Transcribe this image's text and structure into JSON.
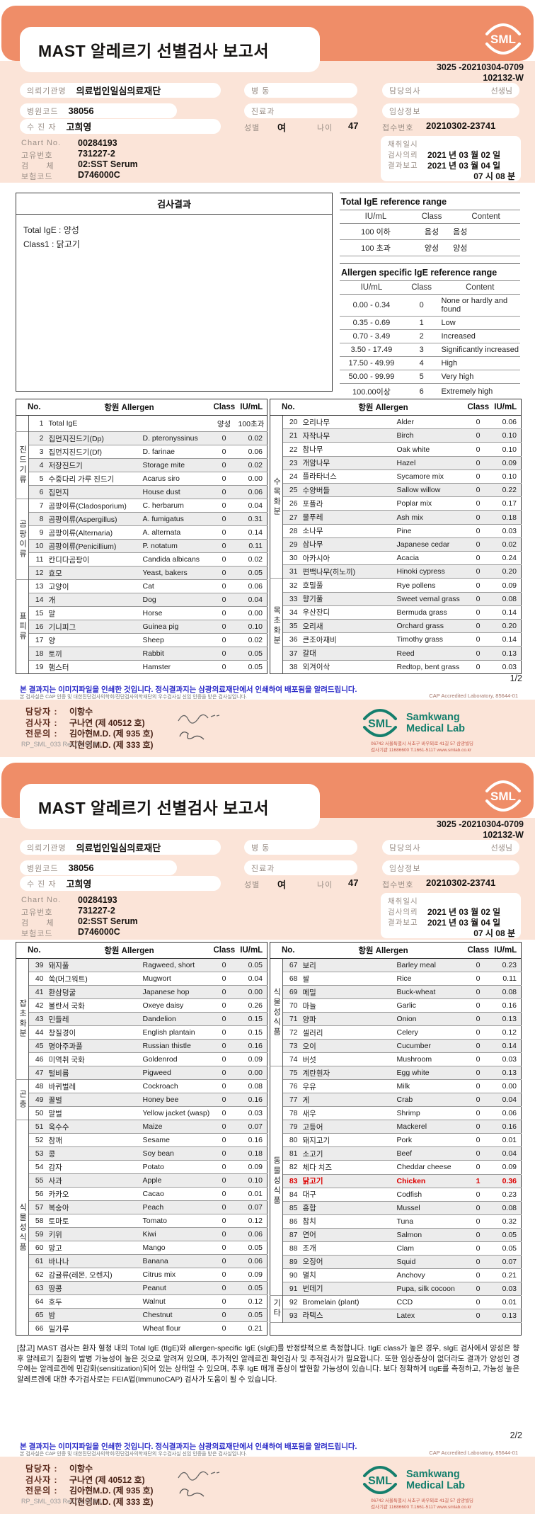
{
  "doc": {
    "title": "MAST 알레르기 선별검사 보고서",
    "doc_no1": "3025 -20210304-0709",
    "doc_no2": "102132-W",
    "logo_text": "SML"
  },
  "patient": {
    "org_label": "의뢰기관명",
    "org": "의료법인일심의료재단",
    "hosp_label": "병원코드",
    "hosp_code": "38056",
    "name_label": "수 진 자",
    "name": "고희영",
    "ward_label": "병 동",
    "dept_label": "진료과",
    "doctor_label": "담당의사",
    "doctor_suffix": "선생님",
    "clinical_label": "임상정보",
    "sex_label": "성별",
    "sex": "여",
    "age_label": "나이",
    "age": "47",
    "receipt_label": "접수번호",
    "receipt_no": "20210302-23741",
    "chart_label": "Chart No.",
    "chart_no": "00284193",
    "uid_label": "고유번호",
    "uid": "731227-2",
    "spec_label": "검      체",
    "specimen": "02:SST Serum",
    "ins_label": "보험코드",
    "ins_code": "D746000C",
    "collect_label": "채취일시",
    "request_label": "검사의뢰",
    "request_date": "2021 년 03 월 02 일",
    "report_label": "결과보고",
    "report_date": "2021 년 03 월 04 일",
    "report_time": "07 시 08 분"
  },
  "result_box": {
    "title": "검사결과",
    "lines": [
      "Total IgE : 양성",
      "Class1 : 닭고기"
    ]
  },
  "total_ige_ref": {
    "title": "Total IgE reference range",
    "headers": [
      "IU/mL",
      "Class",
      "Content"
    ],
    "rows": [
      [
        "100 이하",
        "음성",
        "음성"
      ],
      [
        "100 초과",
        "양성",
        "양성"
      ]
    ]
  },
  "specific_ref": {
    "title": "Allergen specific IgE reference range",
    "headers": [
      "IU/mL",
      "Class",
      "Content"
    ],
    "rows": [
      [
        "0.00 - 0.34",
        "0",
        "None or hardly and\nfound"
      ],
      [
        "0.35 - 0.69",
        "1",
        "Low"
      ],
      [
        "0.70 - 3.49",
        "2",
        "Increased"
      ],
      [
        "3.50 - 17.49",
        "3",
        "Significantly increased"
      ],
      [
        "17.50 - 49.99",
        "4",
        "High"
      ],
      [
        "50.00 - 99.99",
        "5",
        "Very high"
      ],
      [
        "100.00이상",
        "6",
        "Extremely high"
      ]
    ]
  },
  "allergen_header": {
    "no": "No.",
    "allergen": "항원 Allergen",
    "cls": "Class",
    "iu": "IU/mL"
  },
  "pages": [
    {
      "page_no": "1/2",
      "left_rows": [
        {
          "g": "",
          "gs": 1,
          "no": "1",
          "kr": "Total IgE",
          "en": "",
          "cls": "양성",
          "iu": "100초과"
        },
        {
          "g": "진드기류",
          "gs": 5,
          "no": "2",
          "kr": "집먼지진드기(Dp)",
          "en": "D. pteronyssinus",
          "cls": "0",
          "iu": "0.02"
        },
        {
          "no": "3",
          "kr": "집먼지진드기(Df)",
          "en": "D. farinae",
          "cls": "0",
          "iu": "0.06"
        },
        {
          "no": "4",
          "kr": "저장진드기",
          "en": "Storage mite",
          "cls": "0",
          "iu": "0.02"
        },
        {
          "no": "5",
          "kr": "수중다리 가루 진드기",
          "en": "Acarus siro",
          "cls": "0",
          "iu": "0.00"
        },
        {
          "no": "6",
          "kr": "집먼지",
          "en": "House dust",
          "cls": "0",
          "iu": "0.06"
        },
        {
          "g": "곰팡이류",
          "gs": 6,
          "no": "7",
          "kr": "곰팡이류(Cladosporium)",
          "en": "C. herbarum",
          "cls": "0",
          "iu": "0.04"
        },
        {
          "no": "8",
          "kr": "곰팡이류(Aspergillus)",
          "en": "A. fumigatus",
          "cls": "0",
          "iu": "0.31"
        },
        {
          "no": "9",
          "kr": "곰팡이류(Alternaria)",
          "en": "A. alternata",
          "cls": "0",
          "iu": "0.14"
        },
        {
          "no": "10",
          "kr": "곰팡이류(Penicillium)",
          "en": "P. notatum",
          "cls": "0",
          "iu": "0.11"
        },
        {
          "no": "11",
          "kr": "칸디다곰팡이",
          "en": "Candida albicans",
          "cls": "0",
          "iu": "0.02"
        },
        {
          "no": "12",
          "kr": "효모",
          "en": "Yeast, bakers",
          "cls": "0",
          "iu": "0.05"
        },
        {
          "g": "표피류",
          "gs": 7,
          "no": "13",
          "kr": "고양이",
          "en": "Cat",
          "cls": "0",
          "iu": "0.06"
        },
        {
          "no": "14",
          "kr": "개",
          "en": "Dog",
          "cls": "0",
          "iu": "0.04"
        },
        {
          "no": "15",
          "kr": "말",
          "en": "Horse",
          "cls": "0",
          "iu": "0.00"
        },
        {
          "no": "16",
          "kr": "기니피그",
          "en": "Guinea pig",
          "cls": "0",
          "iu": "0.10"
        },
        {
          "no": "17",
          "kr": "양",
          "en": "Sheep",
          "cls": "0",
          "iu": "0.02"
        },
        {
          "no": "18",
          "kr": "토끼",
          "en": "Rabbit",
          "cls": "0",
          "iu": "0.05"
        },
        {
          "no": "19",
          "kr": "햄스터",
          "en": "Hamster",
          "cls": "0",
          "iu": "0.05"
        }
      ],
      "right_rows": [
        {
          "g": "수목화분",
          "gs": 12,
          "no": "20",
          "kr": "오리나무",
          "en": "Alder",
          "cls": "0",
          "iu": "0.06"
        },
        {
          "no": "21",
          "kr": "자작나무",
          "en": "Birch",
          "cls": "0",
          "iu": "0.10"
        },
        {
          "no": "22",
          "kr": "참나무",
          "en": "Oak white",
          "cls": "0",
          "iu": "0.10"
        },
        {
          "no": "23",
          "kr": "개암나무",
          "en": "Hazel",
          "cls": "0",
          "iu": "0.09"
        },
        {
          "no": "24",
          "kr": "플라타너스",
          "en": "Sycamore mix",
          "cls": "0",
          "iu": "0.10"
        },
        {
          "no": "25",
          "kr": "수양버들",
          "en": "Sallow willow",
          "cls": "0",
          "iu": "0.22"
        },
        {
          "no": "26",
          "kr": "포플라",
          "en": "Poplar mix",
          "cls": "0",
          "iu": "0.17"
        },
        {
          "no": "27",
          "kr": "물푸레",
          "en": "Ash mix",
          "cls": "0",
          "iu": "0.18"
        },
        {
          "no": "28",
          "kr": "소나무",
          "en": "Pine",
          "cls": "0",
          "iu": "0.03"
        },
        {
          "no": "29",
          "kr": "삼나무",
          "en": "Japanese cedar",
          "cls": "0",
          "iu": "0.02"
        },
        {
          "no": "30",
          "kr": "아카시아",
          "en": "Acacia",
          "cls": "0",
          "iu": "0.24"
        },
        {
          "no": "31",
          "kr": "편백나무(히노끼)",
          "en": "Hinoki cypress",
          "cls": "0",
          "iu": "0.20"
        },
        {
          "g": "목초화분",
          "gs": 7,
          "no": "32",
          "kr": "호밀풀",
          "en": "Rye pollens",
          "cls": "0",
          "iu": "0.09"
        },
        {
          "no": "33",
          "kr": "향기풀",
          "en": "Sweet vernal grass",
          "cls": "0",
          "iu": "0.08"
        },
        {
          "no": "34",
          "kr": "우산잔디",
          "en": "Bermuda grass",
          "cls": "0",
          "iu": "0.14"
        },
        {
          "no": "35",
          "kr": "오리새",
          "en": "Orchard grass",
          "cls": "0",
          "iu": "0.20"
        },
        {
          "no": "36",
          "kr": "큰조아재비",
          "en": "Timothy grass",
          "cls": "0",
          "iu": "0.14"
        },
        {
          "no": "37",
          "kr": "갈대",
          "en": "Reed",
          "cls": "0",
          "iu": "0.13"
        },
        {
          "no": "38",
          "kr": "외겨이삭",
          "en": "Redtop, bent grass",
          "cls": "0",
          "iu": "0.03"
        }
      ]
    },
    {
      "page_no": "2/2",
      "left_rows": [
        {
          "g": "잡초화분",
          "gs": 9,
          "no": "39",
          "kr": "돼지풀",
          "en": "Ragweed, short",
          "cls": "0",
          "iu": "0.05"
        },
        {
          "no": "40",
          "kr": "쑥(머그워트)",
          "en": "Mugwort",
          "cls": "0",
          "iu": "0.04"
        },
        {
          "no": "41",
          "kr": "환삼덩굴",
          "en": "Japanese hop",
          "cls": "0",
          "iu": "0.00"
        },
        {
          "no": "42",
          "kr": "불란서 국화",
          "en": "Oxeye daisy",
          "cls": "0",
          "iu": "0.26"
        },
        {
          "no": "43",
          "kr": "민들레",
          "en": "Dandelion",
          "cls": "0",
          "iu": "0.15"
        },
        {
          "no": "44",
          "kr": "창질경이",
          "en": "English plantain",
          "cls": "0",
          "iu": "0.15"
        },
        {
          "no": "45",
          "kr": "명아주과풀",
          "en": "Russian thistle",
          "cls": "0",
          "iu": "0.16"
        },
        {
          "no": "46",
          "kr": "미역취 국화",
          "en": "Goldenrod",
          "cls": "0",
          "iu": "0.09"
        },
        {
          "no": "47",
          "kr": "털비름",
          "en": "Pigweed",
          "cls": "0",
          "iu": "0.00"
        },
        {
          "g": "곤충",
          "gs": 3,
          "no": "48",
          "kr": "바퀴벌레",
          "en": "Cockroach",
          "cls": "0",
          "iu": "0.08"
        },
        {
          "no": "49",
          "kr": "꿀벌",
          "en": "Honey bee",
          "cls": "0",
          "iu": "0.16"
        },
        {
          "no": "50",
          "kr": "말벌",
          "en": "Yellow jacket (wasp)",
          "cls": "0",
          "iu": "0.03"
        },
        {
          "g": "식물성식품",
          "gs": 16,
          "no": "51",
          "kr": "옥수수",
          "en": "Maize",
          "cls": "0",
          "iu": "0.07"
        },
        {
          "no": "52",
          "kr": "참깨",
          "en": "Sesame",
          "cls": "0",
          "iu": "0.16"
        },
        {
          "no": "53",
          "kr": "콩",
          "en": "Soy bean",
          "cls": "0",
          "iu": "0.18"
        },
        {
          "no": "54",
          "kr": "감자",
          "en": "Potato",
          "cls": "0",
          "iu": "0.09"
        },
        {
          "no": "55",
          "kr": "사과",
          "en": "Apple",
          "cls": "0",
          "iu": "0.10"
        },
        {
          "no": "56",
          "kr": "카카오",
          "en": "Cacao",
          "cls": "0",
          "iu": "0.01"
        },
        {
          "no": "57",
          "kr": "복숭아",
          "en": "Peach",
          "cls": "0",
          "iu": "0.07"
        },
        {
          "no": "58",
          "kr": "토마토",
          "en": "Tomato",
          "cls": "0",
          "iu": "0.12"
        },
        {
          "no": "59",
          "kr": "키위",
          "en": "Kiwi",
          "cls": "0",
          "iu": "0.06"
        },
        {
          "no": "60",
          "kr": "망고",
          "en": "Mango",
          "cls": "0",
          "iu": "0.05"
        },
        {
          "no": "61",
          "kr": "바나나",
          "en": "Banana",
          "cls": "0",
          "iu": "0.06"
        },
        {
          "no": "62",
          "kr": "감귤류(레몬, 오렌지)",
          "en": "Citrus mix",
          "cls": "0",
          "iu": "0.09"
        },
        {
          "no": "63",
          "kr": "땅콩",
          "en": "Peanut",
          "cls": "0",
          "iu": "0.05"
        },
        {
          "no": "64",
          "kr": "호두",
          "en": "Walnut",
          "cls": "0",
          "iu": "0.12"
        },
        {
          "no": "65",
          "kr": "밤",
          "en": "Chestnut",
          "cls": "0",
          "iu": "0.05"
        },
        {
          "no": "66",
          "kr": "밀가루",
          "en": "Wheat flour",
          "cls": "0",
          "iu": "0.21"
        }
      ],
      "right_rows": [
        {
          "g": "식물성식품",
          "gs": 8,
          "no": "67",
          "kr": "보리",
          "en": "Barley meal",
          "cls": "0",
          "iu": "0.23"
        },
        {
          "no": "68",
          "kr": "쌀",
          "en": "Rice",
          "cls": "0",
          "iu": "0.11"
        },
        {
          "no": "69",
          "kr": "메밀",
          "en": "Buck-wheat",
          "cls": "0",
          "iu": "0.08"
        },
        {
          "no": "70",
          "kr": "마늘",
          "en": "Garlic",
          "cls": "0",
          "iu": "0.16"
        },
        {
          "no": "71",
          "kr": "양파",
          "en": "Onion",
          "cls": "0",
          "iu": "0.13"
        },
        {
          "no": "72",
          "kr": "셀러리",
          "en": "Celery",
          "cls": "0",
          "iu": "0.12"
        },
        {
          "no": "73",
          "kr": "오이",
          "en": "Cucumber",
          "cls": "0",
          "iu": "0.14"
        },
        {
          "no": "74",
          "kr": "버섯",
          "en": "Mushroom",
          "cls": "0",
          "iu": "0.03"
        },
        {
          "g": "동물성식품",
          "gs": 17,
          "no": "75",
          "kr": "계란흰자",
          "en": "Egg white",
          "cls": "0",
          "iu": "0.13"
        },
        {
          "no": "76",
          "kr": "우유",
          "en": "Milk",
          "cls": "0",
          "iu": "0.00"
        },
        {
          "no": "77",
          "kr": "게",
          "en": "Crab",
          "cls": "0",
          "iu": "0.04"
        },
        {
          "no": "78",
          "kr": "새우",
          "en": "Shrimp",
          "cls": "0",
          "iu": "0.06"
        },
        {
          "no": "79",
          "kr": "고등어",
          "en": "Mackerel",
          "cls": "0",
          "iu": "0.16"
        },
        {
          "no": "80",
          "kr": "돼지고기",
          "en": "Pork",
          "cls": "0",
          "iu": "0.01"
        },
        {
          "no": "81",
          "kr": "소고기",
          "en": "Beef",
          "cls": "0",
          "iu": "0.04"
        },
        {
          "no": "82",
          "kr": "체다 치즈",
          "en": "Cheddar cheese",
          "cls": "0",
          "iu": "0.09"
        },
        {
          "no": "83",
          "kr": "닭고기",
          "en": "Chicken",
          "cls": "1",
          "iu": "0.36",
          "hl": true
        },
        {
          "no": "84",
          "kr": "대구",
          "en": "Codfish",
          "cls": "0",
          "iu": "0.23"
        },
        {
          "no": "85",
          "kr": "홍합",
          "en": "Mussel",
          "cls": "0",
          "iu": "0.08"
        },
        {
          "no": "86",
          "kr": "참치",
          "en": "Tuna",
          "cls": "0",
          "iu": "0.32"
        },
        {
          "no": "87",
          "kr": "연어",
          "en": "Salmon",
          "cls": "0",
          "iu": "0.05"
        },
        {
          "no": "88",
          "kr": "조개",
          "en": "Clam",
          "cls": "0",
          "iu": "0.05"
        },
        {
          "no": "89",
          "kr": "오징어",
          "en": "Squid",
          "cls": "0",
          "iu": "0.07"
        },
        {
          "no": "90",
          "kr": "멸치",
          "en": "Anchovy",
          "cls": "0",
          "iu": "0.21"
        },
        {
          "no": "91",
          "kr": "번데기",
          "en": "Pupa, silk cocoon",
          "cls": "0",
          "iu": "0.03"
        },
        {
          "g": "기타",
          "gs": 2,
          "no": "92",
          "kr": "Bromelain (plant)",
          "en": "CCD",
          "cls": "0",
          "iu": "0.01"
        },
        {
          "no": "93",
          "kr": "라텍스",
          "en": "Latex",
          "cls": "0",
          "iu": "0.13"
        }
      ]
    }
  ],
  "footnote": "[참고] MAST 검사는 환자 혈청 내의 Total IgE (tIgE)와 allergen-specific IgE (sIgE)를 반정량적으로 측정합니다. tIgE class가 높은 경우, sIgE 검사에서 양성은 향후 알레르기 질환의 발병 가능성이 높은 것으로 알려져 있으며, 추가적인 알레르겐 확인검사 및 추적검사가 필요합니다. 또한 임상증상이 없더라도 결과가 양성인 경우에는 알레르겐에 민감화(sensitization)되어 있는 상태일 수 있으며, 추후 IgE 매개 증상이 발현할 가능성이 있습니다. 보다 정확하게 tIgE를 측정하고, 가능성 높은 알레르겐에 대한 추가검사로는 FEIA법(ImmunoCAP) 검사가 도움이 될 수 있습니다.",
  "footer": {
    "notice_blue": "본 결과지는 이미지파일을 인쇄한 것입니다. 정식결과지는 삼광의료재단에서 인쇄하여 배포됨을 알려드립니다.",
    "notice_small": "본 검사실은 CAP 인증 및 대한진단검사의학회/진단검사의학재단의 우수검사실 신임 인증을 받은 검사실입니다.",
    "cap": "CAP Accredited Laboratory, 85644-01",
    "staff": [
      {
        "label": "담당자 :",
        "value": "이항수"
      },
      {
        "label": "검사자 :",
        "value": "구나연 (제 40512 호)"
      },
      {
        "label": "전문의 :",
        "value": "김아현M.D. (제 935 호)"
      },
      {
        "label": "",
        "value": "지현영M.D. (제 333 호)"
      }
    ],
    "lab": {
      "logo": "SML",
      "name1": "Samkwang",
      "name2": "Medical Lab",
      "address": "06742 서울특별시 서초구 바우뫼로 41길 57 삼광빌딩",
      "contact": "검사기관 11686600 T.1661-5117 www.smlab.co.kr"
    },
    "form_no": "RP_SML_033 Rev.(5) 20.9.1"
  }
}
